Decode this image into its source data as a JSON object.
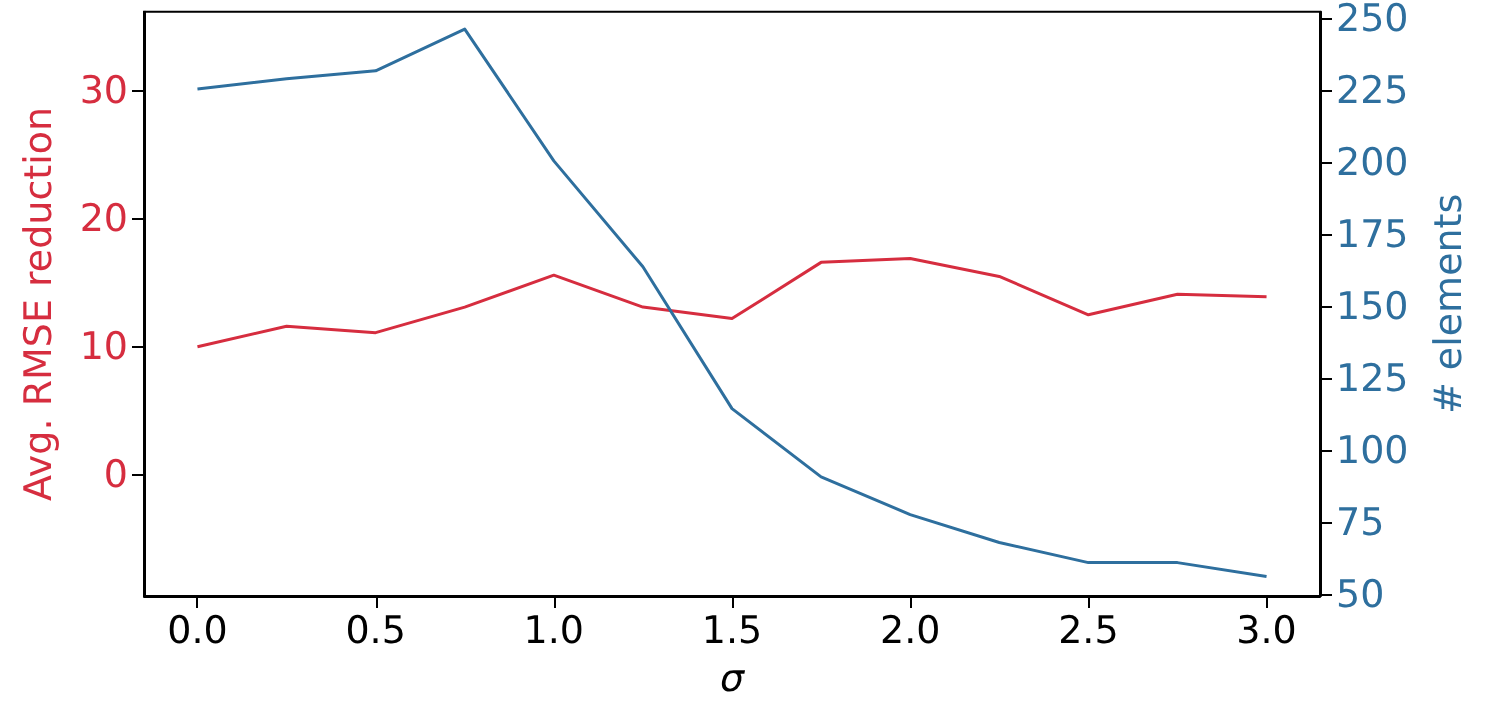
{
  "chart_data": {
    "type": "line",
    "xlabel": "σ",
    "ylabel": "Avg. RMSE reduction",
    "y2label": "# elements",
    "x": [
      0,
      0.25,
      0.5,
      0.75,
      1.0,
      1.25,
      1.5,
      1.75,
      2.0,
      2.25,
      2.5,
      2.75,
      3.0
    ],
    "series": [
      {
        "color": "#d62d3f",
        "values": [
          10.0,
          11.6,
          11.1,
          13.1,
          15.6,
          13.1,
          12.2,
          16.6,
          16.9,
          15.5,
          12.5,
          14.1,
          13.9
        ]
      },
      {
        "color": "#2e6f9e",
        "axis": "y2",
        "values": [
          225.7,
          229.2,
          232,
          246.5,
          200.7,
          163.9,
          114.6,
          90.9,
          77.8,
          68.1,
          61.1,
          61.1,
          56.3
        ]
      }
    ],
    "xlim": [
      -0.15,
      3.15
    ],
    "xticks": [
      {
        "value": 0,
        "label": "0.0"
      },
      {
        "value": 0.5,
        "label": "0.5"
      },
      {
        "value": 1,
        "label": "1.0"
      },
      {
        "value": 1.5,
        "label": "1.5"
      },
      {
        "value": 2,
        "label": "2.0"
      },
      {
        "value": 2.5,
        "label": "2.5"
      },
      {
        "value": 3,
        "label": "3.0"
      }
    ],
    "ylim": [
      -9.5,
      36.2
    ],
    "yticks": [
      0,
      10,
      20,
      30
    ],
    "y2lim": [
      49.5,
      252.5
    ],
    "y2ticks": [
      50,
      75,
      100,
      125,
      150,
      175,
      200,
      225,
      250
    ],
    "grid": false,
    "marker": "none",
    "line_style": "solid"
  }
}
